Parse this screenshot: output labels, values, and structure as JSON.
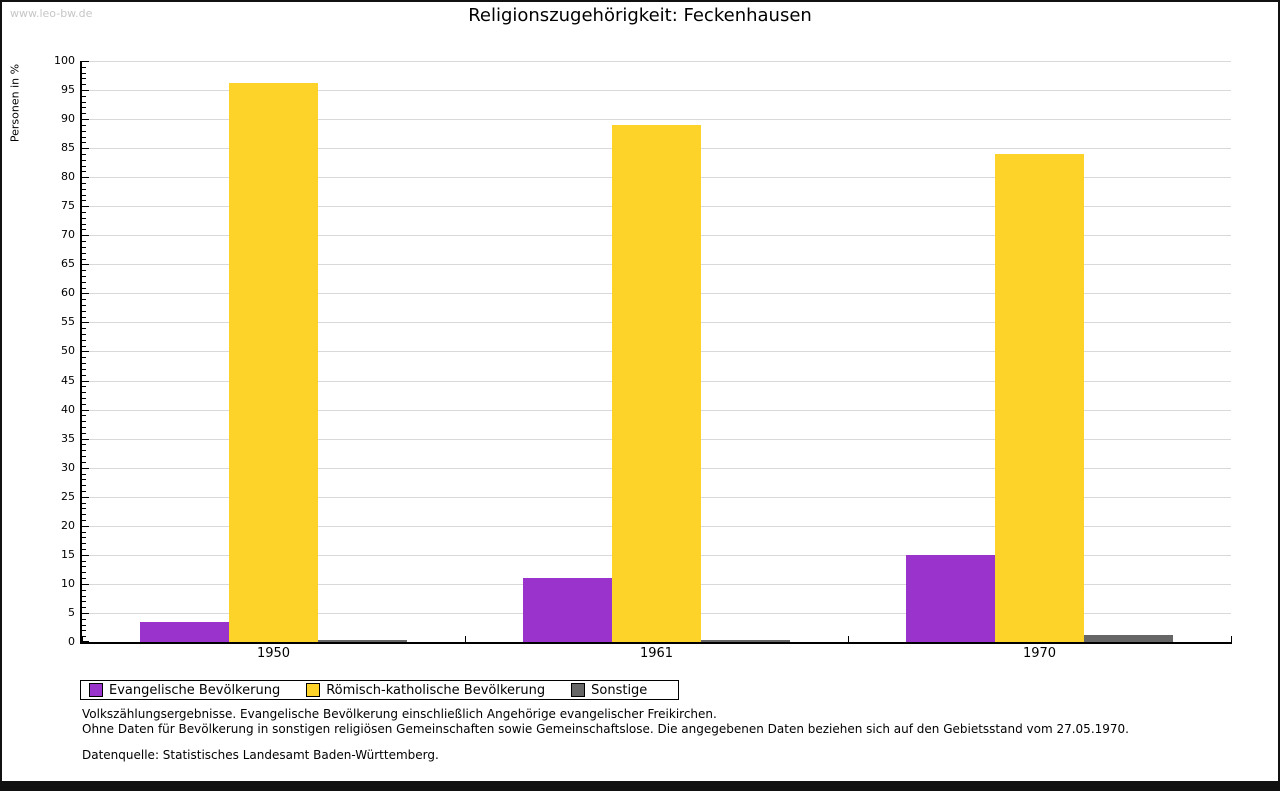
{
  "watermark": "www.leo-bw.de",
  "title": "Religionszugehörigkeit: Feckenhausen",
  "chart_data": {
    "type": "bar",
    "title": "Religionszugehörigkeit: Feckenhausen",
    "ylabel": "Personen in %",
    "xlabel": "",
    "ylim": [
      0,
      100
    ],
    "ytick_major": 5,
    "ytick_minor": 1,
    "grid": true,
    "legend_position": "bottom",
    "categories": [
      "1950",
      "1961",
      "1970"
    ],
    "series": [
      {
        "key": "evangelisch",
        "name": "Evangelische Bevölkerung",
        "color": "#9933cc",
        "values": [
          3.5,
          11.1,
          15.0
        ]
      },
      {
        "key": "katholisch",
        "name": "Römisch-katholische Bevölkerung",
        "color": "#fdd32a",
        "values": [
          96.2,
          88.9,
          84.0
        ]
      },
      {
        "key": "sonstige",
        "name": "Sonstige",
        "color": "#666666",
        "values": [
          0.3,
          0.3,
          1.2
        ]
      }
    ]
  },
  "footnotes": [
    "Volkszählungsergebnisse. Evangelische Bevölkerung einschließlich Angehörige evangelischer Freikirchen.",
    "Ohne Daten für Bevölkerung in sonstigen religiösen Gemeinschaften sowie Gemeinschaftslose. Die angegebenen Daten beziehen sich auf den Gebietsstand vom 27.05.1970."
  ],
  "source": "Datenquelle: Statistisches Landesamt Baden-Württemberg."
}
